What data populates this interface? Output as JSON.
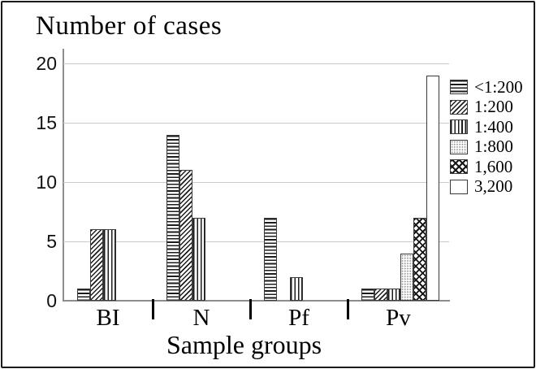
{
  "chart_data": {
    "type": "bar",
    "title": "Number of cases",
    "xlabel": "Sample groups",
    "ylabel": "",
    "categories": [
      "BI",
      "N",
      "Pf",
      "Pv"
    ],
    "series": [
      {
        "name": "<1:200",
        "pattern": "horizontal-stripes",
        "values": [
          1,
          14,
          7,
          1
        ]
      },
      {
        "name": "1:200",
        "pattern": "diagonal-stripes",
        "values": [
          6,
          11,
          0,
          1
        ]
      },
      {
        "name": "1:400",
        "pattern": "vertical-stripes",
        "values": [
          6,
          7,
          2,
          1
        ]
      },
      {
        "name": "1:800",
        "pattern": "dots",
        "values": [
          0,
          0,
          0,
          4
        ]
      },
      {
        "name": "1,600",
        "pattern": "crosshatch",
        "values": [
          0,
          0,
          0,
          7
        ]
      },
      {
        "name": "3,200",
        "pattern": "plain",
        "values": [
          0,
          0,
          0,
          19
        ]
      }
    ],
    "ylim": [
      0,
      20
    ],
    "yticks": [
      0,
      5,
      10,
      15,
      20
    ],
    "grid": true,
    "legend_position": "right",
    "colors": {
      "bar_fill": "#ffffff",
      "bar_stroke": "#3a3a3a",
      "gridline": "#c9c9c9",
      "axis": "#8d8d8d",
      "text": "#000000",
      "background": "#ffffff",
      "frame_border": "#1a1a1a"
    }
  }
}
